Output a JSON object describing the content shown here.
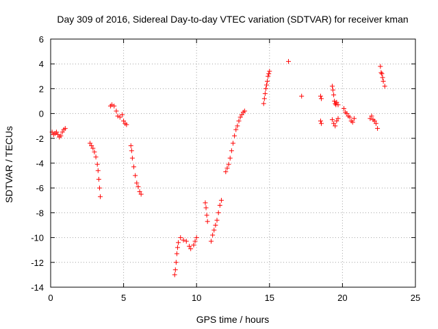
{
  "chart_data": {
    "type": "scatter",
    "title": "Day 309 of 2016, Sidereal Day-to-day VTEC variation (SDTVAR) for receiver kman",
    "xlabel": "GPS time / hours",
    "ylabel": "SDTVAR / TECUs",
    "xlim": [
      0,
      25
    ],
    "ylim": [
      -14,
      6
    ],
    "xticks": [
      0,
      5,
      10,
      15,
      20,
      25
    ],
    "yticks": [
      -14,
      -12,
      -10,
      -8,
      -6,
      -4,
      -2,
      0,
      2,
      4,
      6
    ],
    "grid": true,
    "marker": "+",
    "color": "#ff0000",
    "segments": [
      {
        "name": "arc-1",
        "points": [
          [
            0.1,
            -1.5
          ],
          [
            0.2,
            -1.7
          ],
          [
            0.3,
            -1.6
          ],
          [
            0.4,
            -1.5
          ],
          [
            0.5,
            -1.7
          ],
          [
            0.6,
            -1.9
          ],
          [
            0.7,
            -1.8
          ],
          [
            0.8,
            -1.5
          ],
          [
            0.9,
            -1.3
          ],
          [
            1.0,
            -1.2
          ]
        ]
      },
      {
        "name": "arc-2",
        "points": [
          [
            2.7,
            -2.4
          ],
          [
            2.8,
            -2.6
          ],
          [
            2.9,
            -2.8
          ],
          [
            3.0,
            -3.1
          ],
          [
            3.1,
            -3.5
          ],
          [
            3.2,
            -4.1
          ],
          [
            3.25,
            -4.6
          ],
          [
            3.3,
            -5.3
          ],
          [
            3.35,
            -6.0
          ],
          [
            3.4,
            -6.7
          ]
        ]
      },
      {
        "name": "arc-3",
        "points": [
          [
            4.1,
            0.6
          ],
          [
            4.2,
            0.7
          ],
          [
            4.35,
            0.6
          ],
          [
            4.5,
            0.2
          ],
          [
            4.6,
            -0.2
          ],
          [
            4.75,
            -0.3
          ],
          [
            4.9,
            -0.1
          ],
          [
            5.0,
            -0.6
          ],
          [
            5.1,
            -0.8
          ],
          [
            5.2,
            -0.9
          ]
        ]
      },
      {
        "name": "arc-4",
        "points": [
          [
            5.5,
            -2.6
          ],
          [
            5.55,
            -3.0
          ],
          [
            5.6,
            -3.6
          ],
          [
            5.7,
            -4.3
          ],
          [
            5.8,
            -5.0
          ],
          [
            5.9,
            -5.6
          ],
          [
            6.0,
            -5.9
          ],
          [
            6.1,
            -6.3
          ],
          [
            6.2,
            -6.5
          ]
        ]
      },
      {
        "name": "arc-5",
        "points": [
          [
            8.5,
            -13.0
          ],
          [
            8.55,
            -12.6
          ],
          [
            8.6,
            -12.0
          ],
          [
            8.65,
            -11.3
          ],
          [
            8.7,
            -10.8
          ],
          [
            8.75,
            -10.4
          ],
          [
            8.9,
            -10.0
          ],
          [
            9.1,
            -10.2
          ],
          [
            9.3,
            -10.3
          ],
          [
            9.5,
            -10.7
          ],
          [
            9.6,
            -10.9
          ],
          [
            9.8,
            -10.6
          ],
          [
            9.9,
            -10.3
          ],
          [
            10.0,
            -10.0
          ]
        ]
      },
      {
        "name": "arc-6",
        "points": [
          [
            10.6,
            -7.2
          ],
          [
            10.65,
            -7.6
          ],
          [
            10.7,
            -8.2
          ],
          [
            10.75,
            -8.7
          ]
        ]
      },
      {
        "name": "arc-7",
        "points": [
          [
            11.0,
            -10.3
          ],
          [
            11.1,
            -9.8
          ],
          [
            11.2,
            -9.4
          ],
          [
            11.3,
            -9.0
          ],
          [
            11.4,
            -8.6
          ],
          [
            11.5,
            -8.0
          ],
          [
            11.6,
            -7.4
          ],
          [
            11.7,
            -7.0
          ]
        ]
      },
      {
        "name": "arc-8",
        "points": [
          [
            12.0,
            -4.7
          ],
          [
            12.1,
            -4.4
          ],
          [
            12.2,
            -4.1
          ],
          [
            12.3,
            -3.6
          ],
          [
            12.4,
            -3.0
          ],
          [
            12.5,
            -2.4
          ],
          [
            12.6,
            -1.8
          ],
          [
            12.7,
            -1.3
          ],
          [
            12.8,
            -1.0
          ],
          [
            12.9,
            -0.6
          ],
          [
            13.0,
            -0.3
          ],
          [
            13.1,
            -0.1
          ],
          [
            13.2,
            0.1
          ],
          [
            13.3,
            0.2
          ]
        ]
      },
      {
        "name": "arc-9",
        "points": [
          [
            14.6,
            0.8
          ],
          [
            14.65,
            1.2
          ],
          [
            14.7,
            1.6
          ],
          [
            14.75,
            2.0
          ],
          [
            14.8,
            2.3
          ],
          [
            14.85,
            2.6
          ],
          [
            14.9,
            3.0
          ],
          [
            14.95,
            3.2
          ],
          [
            15.0,
            3.4
          ]
        ]
      },
      {
        "name": "arc-10",
        "points": [
          [
            16.3,
            4.2
          ]
        ]
      },
      {
        "name": "arc-11",
        "points": [
          [
            17.2,
            1.4
          ]
        ]
      },
      {
        "name": "arc-12",
        "points": [
          [
            18.5,
            1.4
          ],
          [
            18.55,
            1.2
          ],
          [
            18.5,
            -0.6
          ],
          [
            18.55,
            -0.8
          ]
        ]
      },
      {
        "name": "arc-13",
        "points": [
          [
            19.3,
            2.2
          ],
          [
            19.35,
            1.9
          ],
          [
            19.4,
            1.5
          ],
          [
            19.45,
            1.0
          ],
          [
            19.5,
            0.8
          ],
          [
            19.55,
            0.7
          ],
          [
            19.6,
            0.9
          ],
          [
            19.7,
            0.7
          ],
          [
            19.3,
            -0.5
          ],
          [
            19.4,
            -0.8
          ],
          [
            19.5,
            -1.0
          ],
          [
            19.6,
            -0.6
          ],
          [
            19.7,
            -0.4
          ]
        ]
      },
      {
        "name": "arc-14",
        "points": [
          [
            20.1,
            0.4
          ],
          [
            20.2,
            0.1
          ],
          [
            20.3,
            0.0
          ],
          [
            20.4,
            -0.2
          ],
          [
            20.5,
            -0.3
          ],
          [
            20.6,
            -0.6
          ],
          [
            20.7,
            -0.7
          ],
          [
            20.8,
            -0.4
          ]
        ]
      },
      {
        "name": "arc-15",
        "points": [
          [
            21.9,
            -0.4
          ],
          [
            22.0,
            -0.2
          ],
          [
            22.1,
            -0.5
          ],
          [
            22.2,
            -0.6
          ],
          [
            22.3,
            -0.8
          ],
          [
            22.4,
            -1.2
          ]
        ]
      },
      {
        "name": "arc-16",
        "points": [
          [
            22.6,
            3.8
          ],
          [
            22.65,
            3.3
          ],
          [
            22.7,
            3.2
          ],
          [
            22.75,
            2.9
          ],
          [
            22.8,
            2.6
          ],
          [
            22.9,
            2.2
          ]
        ]
      }
    ]
  }
}
